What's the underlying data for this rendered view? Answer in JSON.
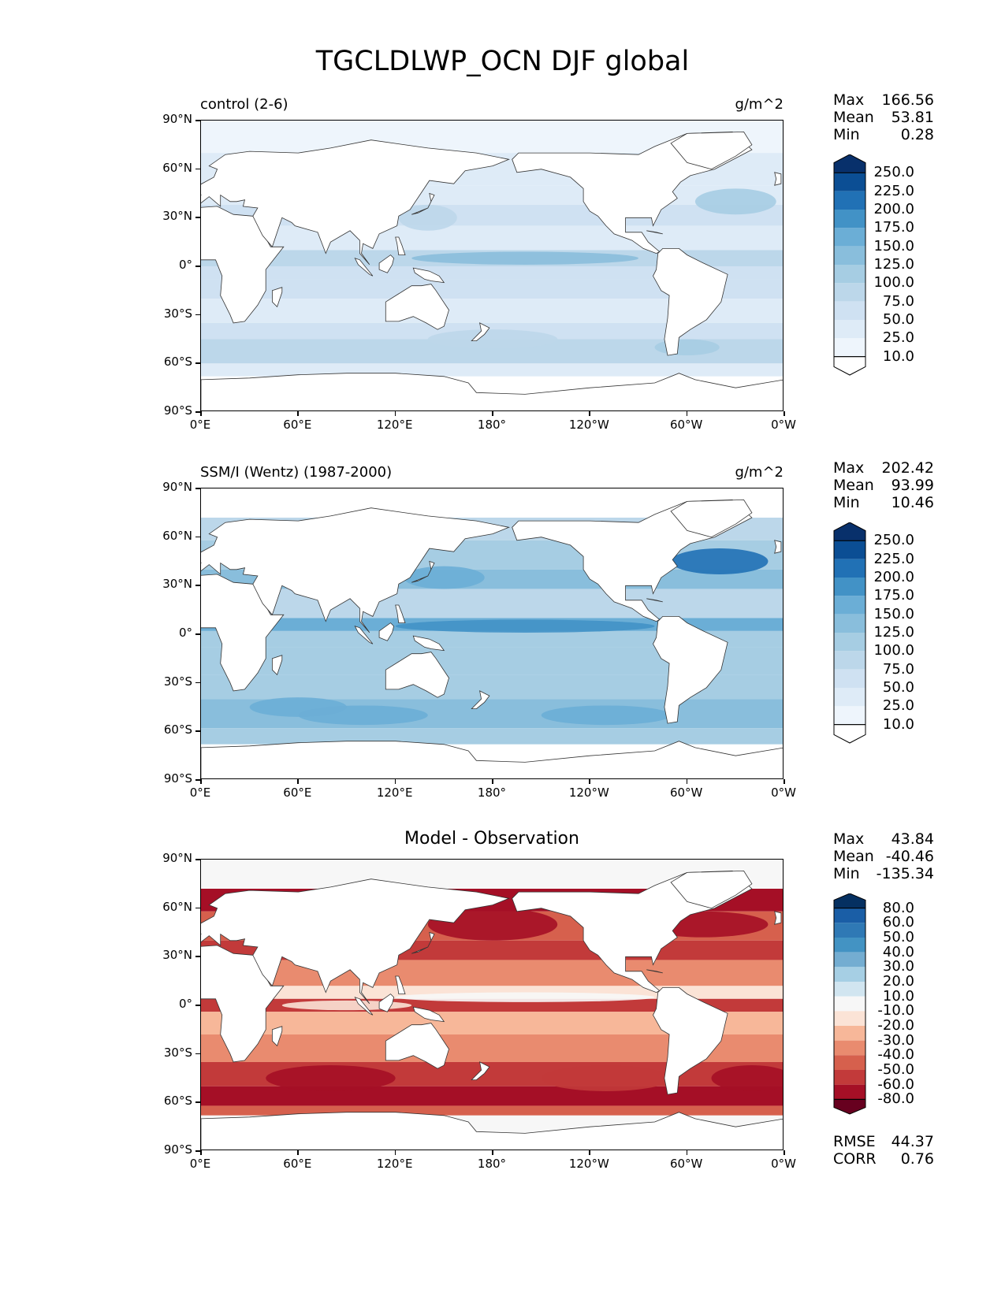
{
  "figure": {
    "title": "TGCLDLWP_OCN DJF global"
  },
  "axes": {
    "lat_ticks": [
      "90°N",
      "60°N",
      "30°N",
      "0°",
      "30°S",
      "60°S",
      "90°S"
    ],
    "lon_ticks": [
      "0°E",
      "60°E",
      "120°E",
      "180°",
      "120°W",
      "60°W",
      "0°W"
    ]
  },
  "panels": [
    {
      "left_title": "control (2-6)",
      "center_title": "",
      "right_title": "g/m^2",
      "stats": [
        {
          "label": "Max",
          "value": "166.56"
        },
        {
          "label": "Mean",
          "value": "53.81"
        },
        {
          "label": "Min",
          "value": "0.28"
        }
      ],
      "colorbar": {
        "levels": [
          "250.0",
          "225.0",
          "200.0",
          "175.0",
          "150.0",
          "125.0",
          "100.0",
          "75.0",
          "50.0",
          "25.0",
          "10.0"
        ],
        "colors": [
          "#08306b",
          "#0b4e94",
          "#2171b5",
          "#4292c6",
          "#6baed6",
          "#89bedc",
          "#a6cde3",
          "#bcd7ea",
          "#cfe1f2",
          "#deebf7",
          "#eef5fc",
          "#ffffff"
        ]
      }
    },
    {
      "left_title": "SSM/I (Wentz) (1987-2000)",
      "center_title": "",
      "right_title": "g/m^2",
      "stats": [
        {
          "label": "Max",
          "value": "202.42"
        },
        {
          "label": "Mean",
          "value": "93.99"
        },
        {
          "label": "Min",
          "value": "10.46"
        }
      ],
      "colorbar": {
        "levels": [
          "250.0",
          "225.0",
          "200.0",
          "175.0",
          "150.0",
          "125.0",
          "100.0",
          "75.0",
          "50.0",
          "25.0",
          "10.0"
        ],
        "colors": [
          "#08306b",
          "#0b4e94",
          "#2171b5",
          "#4292c6",
          "#6baed6",
          "#89bedc",
          "#a6cde3",
          "#bcd7ea",
          "#cfe1f2",
          "#deebf7",
          "#eef5fc",
          "#ffffff"
        ]
      }
    },
    {
      "left_title": "",
      "center_title": "Model - Observation",
      "right_title": "",
      "stats": [
        {
          "label": "Max",
          "value": "43.84"
        },
        {
          "label": "Mean",
          "value": "-40.46"
        },
        {
          "label": "Min",
          "value": "-135.34"
        }
      ],
      "colorbar": {
        "levels": [
          "80.0",
          "60.0",
          "50.0",
          "40.0",
          "30.0",
          "20.0",
          "10.0",
          "-10.0",
          "-20.0",
          "-30.0",
          "-40.0",
          "-50.0",
          "-60.0",
          "-80.0"
        ],
        "colors": [
          "#053061",
          "#1a5ea6",
          "#2f79b5",
          "#4393c3",
          "#74add1",
          "#a6cfe4",
          "#d1e5f0",
          "#f7f7f7",
          "#fbe3d6",
          "#f7b799",
          "#e98b6f",
          "#d6604d",
          "#c23a3a",
          "#a50f26",
          "#67001f"
        ]
      },
      "extra_stats": [
        {
          "label": "RMSE",
          "value": "44.37"
        },
        {
          "label": "CORR",
          "value": "0.76"
        }
      ]
    }
  ]
}
